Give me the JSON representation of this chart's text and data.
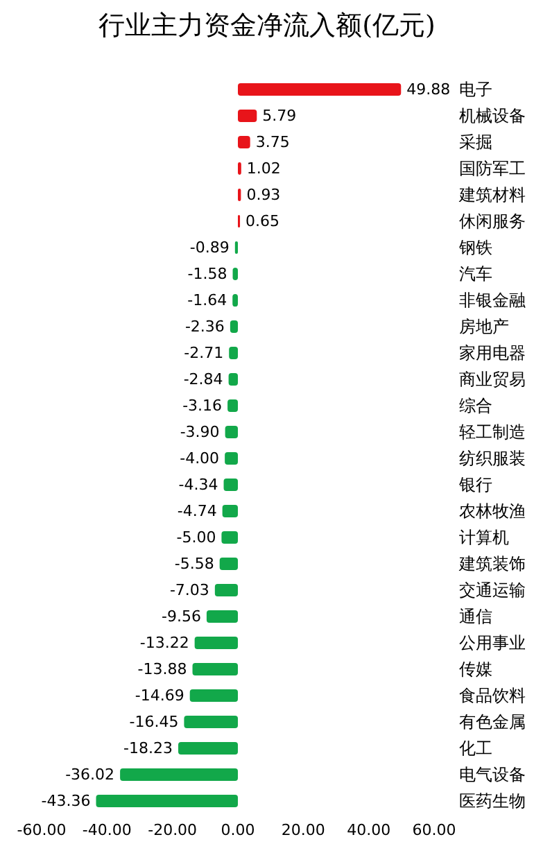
{
  "chart_data": {
    "type": "bar",
    "orientation": "horizontal",
    "title": "行业主力资金净流入额(亿元)",
    "categories": [
      "电子",
      "机械设备",
      "采掘",
      "国防军工",
      "建筑材料",
      "休闲服务",
      "钢铁",
      "汽车",
      "非银金融",
      "房地产",
      "家用电器",
      "商业贸易",
      "综合",
      "轻工制造",
      "纺织服装",
      "银行",
      "农林牧渔",
      "计算机",
      "建筑装饰",
      "交通运输",
      "通信",
      "公用事业",
      "传媒",
      "食品饮料",
      "有色金属",
      "化工",
      "电气设备",
      "医药生物"
    ],
    "values": [
      49.88,
      5.79,
      3.75,
      1.02,
      0.93,
      0.65,
      -0.89,
      -1.58,
      -1.64,
      -2.36,
      -2.71,
      -2.84,
      -3.16,
      -3.9,
      -4,
      -4.34,
      -4.74,
      -5,
      -5.58,
      -7.03,
      -9.56,
      -13.22,
      -13.88,
      -14.69,
      -16.45,
      -18.23,
      -36.02,
      -43.36
    ],
    "value_labels": [
      "49.88",
      "5.79",
      "3.75",
      "1.02",
      "0.93",
      "0.65",
      "-0.89",
      "-1.58",
      "-1.64",
      "-2.36",
      "-2.71",
      "-2.84",
      "-3.16",
      "-3.90",
      "-4.00",
      "-4.34",
      "-4.74",
      "-5.00",
      "-5.58",
      "-7.03",
      "-9.56",
      "-13.22",
      "-13.88",
      "-14.69",
      "-16.45",
      "-18.23",
      "-36.02",
      "-43.36"
    ],
    "colors": [
      "#e8141a",
      "#e8141a",
      "#e8141a",
      "#e8141a",
      "#e8141a",
      "#e8141a",
      "#12a84a",
      "#12a84a",
      "#12a84a",
      "#12a84a",
      "#12a84a",
      "#12a84a",
      "#12a84a",
      "#12a84a",
      "#12a84a",
      "#12a84a",
      "#12a84a",
      "#12a84a",
      "#12a84a",
      "#12a84a",
      "#12a84a",
      "#12a84a",
      "#12a84a",
      "#12a84a",
      "#12a84a",
      "#12a84a",
      "#12a84a",
      "#12a84a"
    ],
    "xlim": [
      -60,
      60
    ],
    "xticks": [
      {
        "value": -60,
        "label": "-60.00"
      },
      {
        "value": -40,
        "label": "-40.00"
      },
      {
        "value": -20,
        "label": "-20.00"
      },
      {
        "value": 0,
        "label": "0.00"
      },
      {
        "value": 20,
        "label": "20.00"
      },
      {
        "value": 40,
        "label": "40.00"
      },
      {
        "value": 60,
        "label": "60.00"
      }
    ],
    "grid": false
  }
}
